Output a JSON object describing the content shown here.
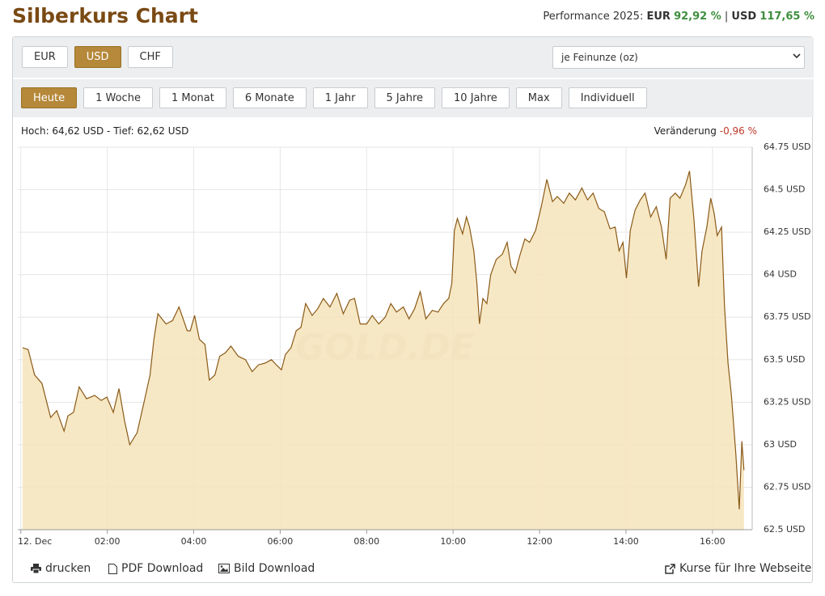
{
  "header": {
    "title": "Silberkurs Chart",
    "performance_label": "Performance 2025:",
    "eur_label": "EUR",
    "eur_value": "92,92 %",
    "separator": "|",
    "usd_label": "USD",
    "usd_value": "117,65 %"
  },
  "currency_buttons": [
    "EUR",
    "USD",
    "CHF"
  ],
  "unit_select": "je Feinunze (oz)",
  "range_buttons": [
    "Heute",
    "1 Woche",
    "1 Monat",
    "6 Monate",
    "1 Jahr",
    "5 Jahre",
    "10 Jahre",
    "Max",
    "Individuell"
  ],
  "stats": {
    "high_low": "Hoch: 64,62 USD - Tief: 62,62 USD",
    "change_label": "Veränderung",
    "change_value": "-0,96 %"
  },
  "footer_links": [
    "drucken",
    "PDF Download",
    "Bild Download",
    "Kurse für Ihre Webseite"
  ],
  "chart_data": {
    "type": "area",
    "watermark": "GOLD.DE",
    "color": "#8a5a18",
    "fill": "#f6e4bb",
    "grid": true,
    "xlim": [
      -0.07,
      16.92
    ],
    "ylim": [
      62.5,
      64.75
    ],
    "xticks": [
      {
        "value": 0,
        "label": "12. Dec"
      },
      {
        "value": 2,
        "label": "02:00"
      },
      {
        "value": 4,
        "label": "04:00"
      },
      {
        "value": 6,
        "label": "06:00"
      },
      {
        "value": 8,
        "label": "08:00"
      },
      {
        "value": 10,
        "label": "10:00"
      },
      {
        "value": 12,
        "label": "12:00"
      },
      {
        "value": 14,
        "label": "14:00"
      },
      {
        "value": 16,
        "label": "16:00"
      }
    ],
    "yticks": [
      {
        "value": 62.5,
        "label": "62.5 USD"
      },
      {
        "value": 62.75,
        "label": "62.75 USD"
      },
      {
        "value": 63,
        "label": "63 USD"
      },
      {
        "value": 63.25,
        "label": "63.25 USD"
      },
      {
        "value": 63.5,
        "label": "63.5 USD"
      },
      {
        "value": 63.75,
        "label": "63.75 USD"
      },
      {
        "value": 64,
        "label": "64 USD"
      },
      {
        "value": 64.25,
        "label": "64.25 USD"
      },
      {
        "value": 64.5,
        "label": "64.5 USD"
      },
      {
        "value": 64.75,
        "label": "64.75 USD"
      }
    ],
    "x": [
      0.04,
      0.17,
      0.32,
      0.49,
      0.69,
      0.83,
      1.0,
      1.09,
      1.22,
      1.35,
      1.52,
      1.71,
      1.86,
      1.99,
      2.14,
      2.27,
      2.4,
      2.52,
      2.69,
      2.85,
      2.99,
      3.08,
      3.17,
      3.36,
      3.51,
      3.66,
      3.85,
      3.92,
      4.02,
      4.13,
      4.26,
      4.36,
      4.49,
      4.6,
      4.73,
      4.86,
      5.03,
      5.2,
      5.35,
      5.5,
      5.65,
      5.8,
      5.91,
      6.03,
      6.12,
      6.25,
      6.37,
      6.48,
      6.59,
      6.74,
      6.87,
      7.0,
      7.15,
      7.31,
      7.46,
      7.61,
      7.72,
      7.85,
      8.0,
      8.13,
      8.28,
      8.43,
      8.56,
      8.69,
      8.85,
      8.98,
      9.11,
      9.24,
      9.37,
      9.52,
      9.65,
      9.78,
      9.9,
      9.97,
      10.03,
      10.1,
      10.22,
      10.31,
      10.38,
      10.48,
      10.55,
      10.61,
      10.69,
      10.78,
      10.87,
      11.0,
      11.14,
      11.25,
      11.34,
      11.44,
      11.53,
      11.66,
      11.77,
      11.91,
      12.04,
      12.17,
      12.3,
      12.41,
      12.56,
      12.69,
      12.83,
      12.98,
      13.11,
      13.24,
      13.37,
      13.5,
      13.63,
      13.75,
      13.84,
      13.93,
      14.01,
      14.1,
      14.21,
      14.33,
      14.44,
      14.57,
      14.7,
      14.82,
      14.93,
      15.02,
      15.14,
      15.25,
      15.38,
      15.47,
      15.57,
      15.68,
      15.76,
      15.87,
      15.96,
      16.04,
      16.11,
      16.21,
      16.28,
      16.36,
      16.44,
      16.49,
      16.54,
      16.62,
      16.68,
      16.73
    ],
    "values": [
      63.57,
      63.56,
      63.41,
      63.36,
      63.16,
      63.2,
      63.08,
      63.17,
      63.19,
      63.34,
      63.27,
      63.29,
      63.26,
      63.28,
      63.19,
      63.33,
      63.14,
      63.0,
      63.07,
      63.25,
      63.41,
      63.62,
      63.77,
      63.71,
      63.73,
      63.81,
      63.67,
      63.67,
      63.76,
      63.62,
      63.59,
      63.38,
      63.41,
      63.52,
      63.54,
      63.58,
      63.52,
      63.5,
      63.43,
      63.47,
      63.48,
      63.5,
      63.47,
      63.44,
      63.53,
      63.57,
      63.67,
      63.69,
      63.83,
      63.76,
      63.8,
      63.86,
      63.81,
      63.89,
      63.77,
      63.85,
      63.86,
      63.71,
      63.71,
      63.76,
      63.71,
      63.75,
      63.83,
      63.78,
      63.81,
      63.74,
      63.8,
      63.9,
      63.74,
      63.79,
      63.78,
      63.83,
      63.86,
      63.95,
      64.26,
      64.33,
      64.24,
      64.34,
      64.28,
      64.14,
      63.95,
      63.71,
      63.86,
      63.83,
      64.0,
      64.09,
      64.12,
      64.19,
      64.05,
      64.01,
      64.1,
      64.21,
      64.19,
      64.26,
      64.4,
      64.56,
      64.43,
      64.46,
      64.42,
      64.48,
      64.44,
      64.51,
      64.44,
      64.48,
      64.39,
      64.37,
      64.27,
      64.28,
      64.14,
      64.19,
      63.98,
      64.26,
      64.38,
      64.44,
      64.48,
      64.34,
      64.4,
      64.28,
      64.09,
      64.45,
      64.48,
      64.45,
      64.53,
      64.61,
      64.33,
      63.93,
      64.14,
      64.28,
      64.45,
      64.36,
      64.23,
      64.28,
      63.81,
      63.48,
      63.29,
      63.12,
      62.95,
      62.62,
      63.02,
      62.85
    ]
  }
}
